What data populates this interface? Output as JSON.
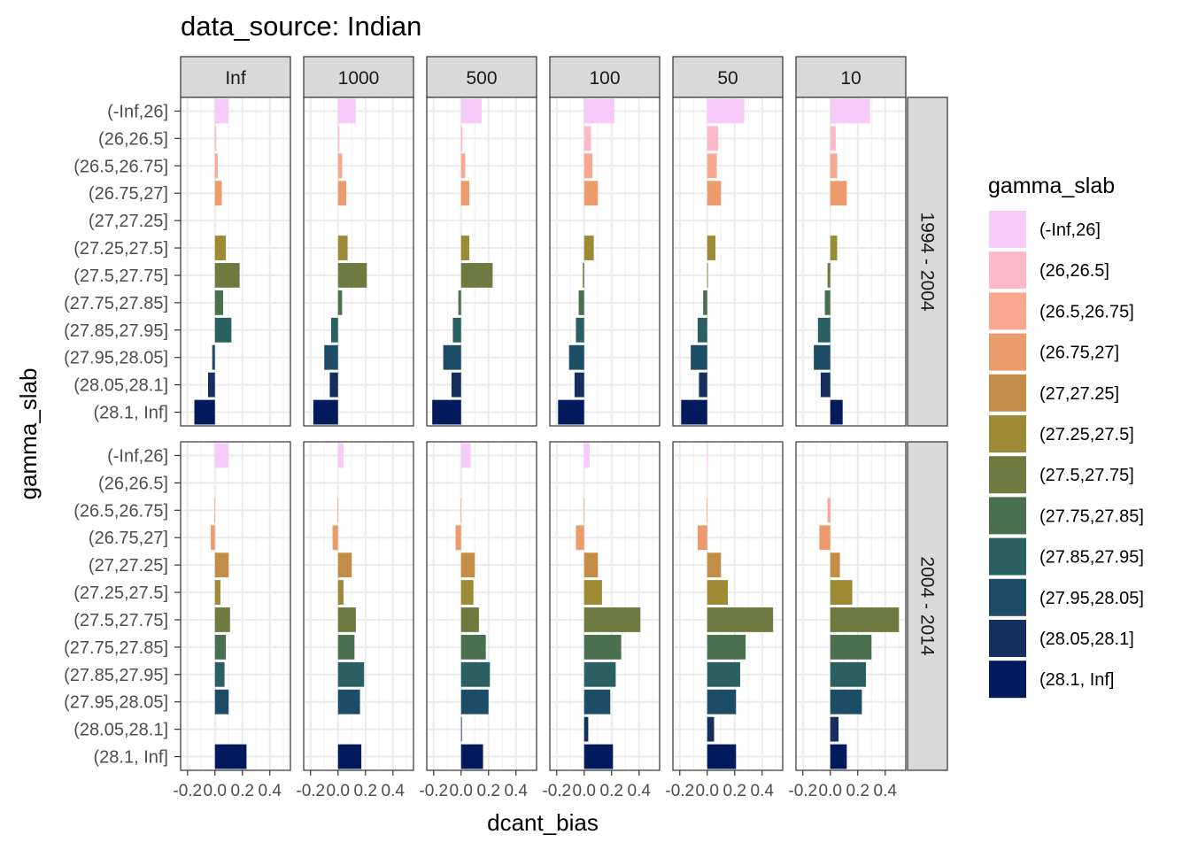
{
  "chart_data": {
    "type": "bar",
    "orientation": "horizontal",
    "title": "data_source: Indian",
    "xlabel": "dcant_bias",
    "ylabel": "gamma_slab",
    "xlim": [
      -0.25,
      0.55
    ],
    "x_ticks": [
      -0.2,
      0.0,
      0.2,
      0.4
    ],
    "x_tick_labels": [
      "-0.2",
      "0.0",
      "0.2",
      "0.4"
    ],
    "grid": true,
    "legend_position": "right",
    "legend_title": "gamma_slab",
    "categories": [
      "(-Inf,26]",
      "(26,26.5]",
      "(26.5,26.75]",
      "(26.75,27]",
      "(27,27.25]",
      "(27.25,27.5]",
      "(27.5,27.75]",
      "(27.75,27.85]",
      "(27.85,27.95]",
      "(27.95,28.05]",
      "(28.05,28.1]",
      "(28.1, Inf]"
    ],
    "colors": [
      "#F7CBF8",
      "#FCB9C9",
      "#F9A88F",
      "#EC9C6C",
      "#C48D47",
      "#9C8A34",
      "#6E7A40",
      "#4A7050",
      "#2B6062",
      "#1D4D66",
      "#152E5E",
      "#031A5C"
    ],
    "col_facets": [
      "Inf",
      "1000",
      "500",
      "100",
      "50",
      "10"
    ],
    "row_facets": [
      "1994 - 2004",
      "2004 - 2014"
    ],
    "values": [
      [
        [
          0.1,
          0.01,
          0.02,
          0.05,
          null,
          0.08,
          0.18,
          0.06,
          0.12,
          -0.02,
          -0.05,
          -0.15
        ],
        [
          0.13,
          0.01,
          0.03,
          0.06,
          null,
          0.07,
          0.21,
          0.03,
          -0.05,
          -0.1,
          -0.06,
          -0.18
        ],
        [
          0.15,
          0.01,
          0.03,
          0.06,
          null,
          0.06,
          0.23,
          -0.02,
          -0.06,
          -0.13,
          -0.07,
          -0.21
        ],
        [
          0.22,
          0.05,
          0.06,
          0.1,
          null,
          0.07,
          -0.01,
          -0.04,
          -0.06,
          -0.11,
          -0.07,
          -0.19
        ],
        [
          0.27,
          0.08,
          0.07,
          0.1,
          null,
          0.06,
          0.005,
          -0.03,
          -0.07,
          -0.12,
          -0.06,
          -0.19
        ],
        [
          0.29,
          0.04,
          0.05,
          0.12,
          null,
          0.05,
          -0.02,
          -0.04,
          -0.09,
          -0.12,
          -0.07,
          0.09
        ]
      ],
      [
        [
          0.1,
          null,
          -0.005,
          -0.03,
          0.1,
          0.04,
          0.11,
          0.08,
          0.07,
          0.1,
          null,
          0.23
        ],
        [
          0.04,
          null,
          -0.005,
          -0.04,
          0.1,
          0.04,
          0.13,
          0.12,
          0.19,
          0.16,
          null,
          0.17
        ],
        [
          0.07,
          null,
          -0.005,
          -0.04,
          0.1,
          0.09,
          0.13,
          0.18,
          0.21,
          0.2,
          0.005,
          0.16
        ],
        [
          0.04,
          null,
          -0.005,
          -0.06,
          0.1,
          0.13,
          0.41,
          0.27,
          0.23,
          0.19,
          0.03,
          0.21
        ],
        [
          0.005,
          null,
          -0.005,
          -0.07,
          0.1,
          0.15,
          0.48,
          0.28,
          0.24,
          0.21,
          0.05,
          0.21
        ],
        [
          null,
          null,
          -0.02,
          -0.08,
          0.07,
          0.16,
          0.5,
          0.3,
          0.26,
          0.23,
          0.06,
          0.12
        ]
      ]
    ]
  }
}
